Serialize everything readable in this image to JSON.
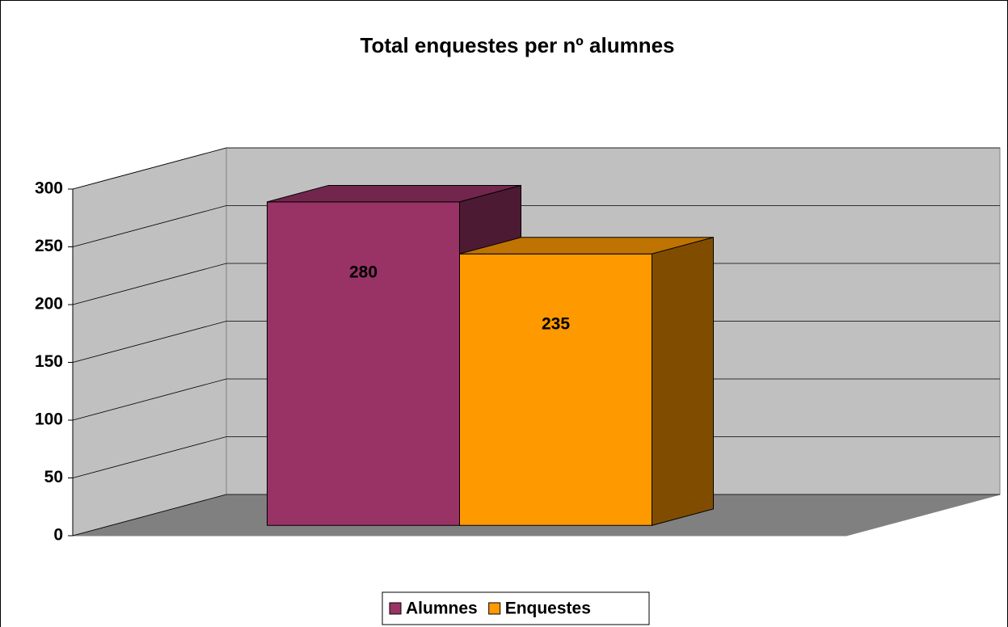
{
  "chart_data": {
    "type": "bar3d",
    "title": "Total enquestes per nº alumnes",
    "series": [
      {
        "name": "Alumnes",
        "color": "#993366",
        "values": [
          280
        ]
      },
      {
        "name": "Enquestes",
        "color": "#ff9900",
        "values": [
          235
        ]
      }
    ],
    "ylim": [
      0,
      300
    ],
    "yticks": [
      0,
      50,
      100,
      150,
      200,
      250,
      300
    ],
    "grid": true,
    "legend": "bottom"
  }
}
